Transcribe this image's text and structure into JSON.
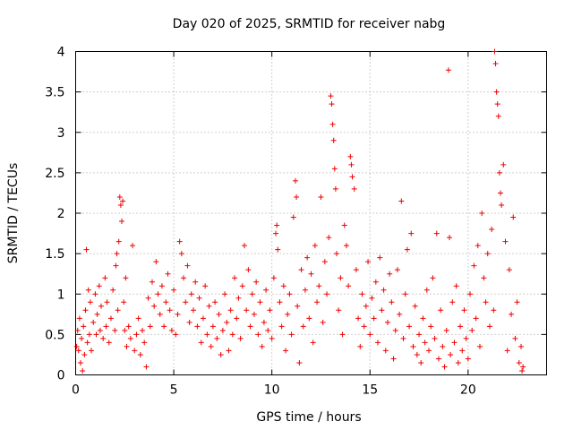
{
  "chart_data": {
    "type": "scatter",
    "title": "Day 020 of 2025, SRMTID for receiver nabg",
    "xlabel": "GPS time / hours",
    "ylabel": "SRMTID / TECUs",
    "xlim": [
      0,
      24
    ],
    "ylim": [
      0,
      4
    ],
    "xticks": [
      "0",
      "5",
      "10",
      "15",
      "20"
    ],
    "yticks": [
      "0",
      "0.5",
      "1",
      "1.5",
      "2",
      "2.5",
      "3",
      "3.5",
      "4"
    ],
    "grid": true,
    "marker": "+",
    "color": "#ee0000",
    "series": [
      {
        "name": "SRMTID",
        "note": "dense scatter; representative sample of points read from the figure",
        "points": [
          [
            0.05,
            0.35
          ],
          [
            0.1,
            0.55
          ],
          [
            0.15,
            0.3
          ],
          [
            0.2,
            0.7
          ],
          [
            0.25,
            0.15
          ],
          [
            0.3,
            0.45
          ],
          [
            0.35,
            0.05
          ],
          [
            0.4,
            0.6
          ],
          [
            0.45,
            0.25
          ],
          [
            0.5,
            0.8
          ],
          [
            0.55,
            1.55
          ],
          [
            0.6,
            0.4
          ],
          [
            0.65,
            1.05
          ],
          [
            0.7,
            0.5
          ],
          [
            0.75,
            0.9
          ],
          [
            0.8,
            0.3
          ],
          [
            0.9,
            0.65
          ],
          [
            1.0,
            1.0
          ],
          [
            1.05,
            0.5
          ],
          [
            1.1,
            0.75
          ],
          [
            1.2,
            1.1
          ],
          [
            1.25,
            0.55
          ],
          [
            1.3,
            0.85
          ],
          [
            1.4,
            0.45
          ],
          [
            1.5,
            1.2
          ],
          [
            1.55,
            0.6
          ],
          [
            1.6,
            0.9
          ],
          [
            1.7,
            0.4
          ],
          [
            1.8,
            0.7
          ],
          [
            1.9,
            1.05
          ],
          [
            2.0,
            0.55
          ],
          [
            2.05,
            1.35
          ],
          [
            2.1,
            1.5
          ],
          [
            2.15,
            0.8
          ],
          [
            2.2,
            1.65
          ],
          [
            2.25,
            2.2
          ],
          [
            2.3,
            2.1
          ],
          [
            2.35,
            1.9
          ],
          [
            2.4,
            2.15
          ],
          [
            2.45,
            0.9
          ],
          [
            2.5,
            0.55
          ],
          [
            2.55,
            1.2
          ],
          [
            2.6,
            0.35
          ],
          [
            2.7,
            0.6
          ],
          [
            2.8,
            0.45
          ],
          [
            2.9,
            1.6
          ],
          [
            3.0,
            0.3
          ],
          [
            3.1,
            0.5
          ],
          [
            3.2,
            0.7
          ],
          [
            3.3,
            0.25
          ],
          [
            3.4,
            0.55
          ],
          [
            3.5,
            0.4
          ],
          [
            3.6,
            0.1
          ],
          [
            3.7,
            0.95
          ],
          [
            3.8,
            0.6
          ],
          [
            3.9,
            1.15
          ],
          [
            4.0,
            0.85
          ],
          [
            4.1,
            1.4
          ],
          [
            4.2,
            1.0
          ],
          [
            4.3,
            0.75
          ],
          [
            4.4,
            1.1
          ],
          [
            4.5,
            0.6
          ],
          [
            4.6,
            0.9
          ],
          [
            4.7,
            1.25
          ],
          [
            4.8,
            0.8
          ],
          [
            4.9,
            0.55
          ],
          [
            5.0,
            1.05
          ],
          [
            5.1,
            0.5
          ],
          [
            5.2,
            0.75
          ],
          [
            5.3,
            1.65
          ],
          [
            5.4,
            1.5
          ],
          [
            5.5,
            1.2
          ],
          [
            5.6,
            0.9
          ],
          [
            5.7,
            1.35
          ],
          [
            5.8,
            0.65
          ],
          [
            5.9,
            1.0
          ],
          [
            6.0,
            0.8
          ],
          [
            6.1,
            1.15
          ],
          [
            6.2,
            0.6
          ],
          [
            6.3,
            0.95
          ],
          [
            6.4,
            0.4
          ],
          [
            6.5,
            0.7
          ],
          [
            6.6,
            1.1
          ],
          [
            6.7,
            0.5
          ],
          [
            6.8,
            0.85
          ],
          [
            6.9,
            0.35
          ],
          [
            7.0,
            0.6
          ],
          [
            7.1,
            0.9
          ],
          [
            7.2,
            0.45
          ],
          [
            7.3,
            0.75
          ],
          [
            7.4,
            0.25
          ],
          [
            7.5,
            0.55
          ],
          [
            7.6,
            1.0
          ],
          [
            7.7,
            0.65
          ],
          [
            7.8,
            0.3
          ],
          [
            7.9,
            0.8
          ],
          [
            8.0,
            0.5
          ],
          [
            8.1,
            1.2
          ],
          [
            8.2,
            0.7
          ],
          [
            8.3,
            0.95
          ],
          [
            8.4,
            0.45
          ],
          [
            8.5,
            1.1
          ],
          [
            8.6,
            1.6
          ],
          [
            8.7,
            0.8
          ],
          [
            8.8,
            1.3
          ],
          [
            8.9,
            0.6
          ],
          [
            9.0,
            1.0
          ],
          [
            9.1,
            0.75
          ],
          [
            9.2,
            1.15
          ],
          [
            9.3,
            0.5
          ],
          [
            9.4,
            0.9
          ],
          [
            9.5,
            0.35
          ],
          [
            9.6,
            0.65
          ],
          [
            9.7,
            1.05
          ],
          [
            9.8,
            0.55
          ],
          [
            9.9,
            0.8
          ],
          [
            10.0,
            0.45
          ],
          [
            10.1,
            1.2
          ],
          [
            10.2,
            1.75
          ],
          [
            10.25,
            1.85
          ],
          [
            10.3,
            1.55
          ],
          [
            10.4,
            0.9
          ],
          [
            10.5,
            0.6
          ],
          [
            10.6,
            1.1
          ],
          [
            10.7,
            0.3
          ],
          [
            10.8,
            0.75
          ],
          [
            10.9,
            1.0
          ],
          [
            11.0,
            0.5
          ],
          [
            11.1,
            1.95
          ],
          [
            11.2,
            2.4
          ],
          [
            11.25,
            2.2
          ],
          [
            11.3,
            0.85
          ],
          [
            11.4,
            0.15
          ],
          [
            11.5,
            1.3
          ],
          [
            11.6,
            0.6
          ],
          [
            11.7,
            1.05
          ],
          [
            11.8,
            1.45
          ],
          [
            11.9,
            0.7
          ],
          [
            12.0,
            1.25
          ],
          [
            12.1,
            0.4
          ],
          [
            12.2,
            1.6
          ],
          [
            12.3,
            0.9
          ],
          [
            12.4,
            1.1
          ],
          [
            12.5,
            2.2
          ],
          [
            12.6,
            0.65
          ],
          [
            12.7,
            1.4
          ],
          [
            12.8,
            1.0
          ],
          [
            12.9,
            1.7
          ],
          [
            13.0,
            3.45
          ],
          [
            13.05,
            3.35
          ],
          [
            13.1,
            3.1
          ],
          [
            13.15,
            2.9
          ],
          [
            13.2,
            2.55
          ],
          [
            13.25,
            2.3
          ],
          [
            13.3,
            1.5
          ],
          [
            13.4,
            0.8
          ],
          [
            13.5,
            1.2
          ],
          [
            13.6,
            0.5
          ],
          [
            13.7,
            1.85
          ],
          [
            13.8,
            1.6
          ],
          [
            13.9,
            1.1
          ],
          [
            14.0,
            2.7
          ],
          [
            14.05,
            2.6
          ],
          [
            14.1,
            2.45
          ],
          [
            14.2,
            2.3
          ],
          [
            14.3,
            1.3
          ],
          [
            14.4,
            0.7
          ],
          [
            14.5,
            0.35
          ],
          [
            14.6,
            1.0
          ],
          [
            14.7,
            0.6
          ],
          [
            14.8,
            0.85
          ],
          [
            14.9,
            1.4
          ],
          [
            15.0,
            0.5
          ],
          [
            15.1,
            0.95
          ],
          [
            15.2,
            0.7
          ],
          [
            15.3,
            1.15
          ],
          [
            15.4,
            0.4
          ],
          [
            15.5,
            1.45
          ],
          [
            15.6,
            0.8
          ],
          [
            15.7,
            1.05
          ],
          [
            15.8,
            0.3
          ],
          [
            15.9,
            0.65
          ],
          [
            16.0,
            1.25
          ],
          [
            16.1,
            0.9
          ],
          [
            16.2,
            0.2
          ],
          [
            16.3,
            0.55
          ],
          [
            16.4,
            1.3
          ],
          [
            16.5,
            0.75
          ],
          [
            16.6,
            2.15
          ],
          [
            16.7,
            0.45
          ],
          [
            16.8,
            1.0
          ],
          [
            16.9,
            1.55
          ],
          [
            17.0,
            0.6
          ],
          [
            17.1,
            1.75
          ],
          [
            17.2,
            0.35
          ],
          [
            17.3,
            0.85
          ],
          [
            17.4,
            0.25
          ],
          [
            17.5,
            0.5
          ],
          [
            17.6,
            0.15
          ],
          [
            17.7,
            0.7
          ],
          [
            17.8,
            0.4
          ],
          [
            17.9,
            1.05
          ],
          [
            18.0,
            0.3
          ],
          [
            18.1,
            0.6
          ],
          [
            18.2,
            1.2
          ],
          [
            18.3,
            0.45
          ],
          [
            18.4,
            1.75
          ],
          [
            18.5,
            0.2
          ],
          [
            18.6,
            0.8
          ],
          [
            18.7,
            0.35
          ],
          [
            18.8,
            0.1
          ],
          [
            18.9,
            0.55
          ],
          [
            19.0,
            3.77
          ],
          [
            19.05,
            1.7
          ],
          [
            19.1,
            0.25
          ],
          [
            19.2,
            0.9
          ],
          [
            19.3,
            0.4
          ],
          [
            19.4,
            1.1
          ],
          [
            19.5,
            0.15
          ],
          [
            19.6,
            0.6
          ],
          [
            19.7,
            0.3
          ],
          [
            19.8,
            0.8
          ],
          [
            19.9,
            0.45
          ],
          [
            20.0,
            0.2
          ],
          [
            20.1,
            1.0
          ],
          [
            20.2,
            0.55
          ],
          [
            20.3,
            1.35
          ],
          [
            20.4,
            0.7
          ],
          [
            20.5,
            1.6
          ],
          [
            20.6,
            0.35
          ],
          [
            20.7,
            2.0
          ],
          [
            20.8,
            1.2
          ],
          [
            20.9,
            0.9
          ],
          [
            21.0,
            1.5
          ],
          [
            21.1,
            0.6
          ],
          [
            21.2,
            1.8
          ],
          [
            21.3,
            0.8
          ],
          [
            21.35,
            4.0
          ],
          [
            21.4,
            3.85
          ],
          [
            21.45,
            3.5
          ],
          [
            21.5,
            3.35
          ],
          [
            21.55,
            3.2
          ],
          [
            21.6,
            2.5
          ],
          [
            21.65,
            2.25
          ],
          [
            21.7,
            2.1
          ],
          [
            21.8,
            2.6
          ],
          [
            21.9,
            1.65
          ],
          [
            22.0,
            0.3
          ],
          [
            22.1,
            1.3
          ],
          [
            22.2,
            0.75
          ],
          [
            22.3,
            1.95
          ],
          [
            22.4,
            0.45
          ],
          [
            22.5,
            0.9
          ],
          [
            22.6,
            0.15
          ],
          [
            22.7,
            0.35
          ],
          [
            22.75,
            0.05
          ],
          [
            22.8,
            0.1
          ]
        ]
      }
    ]
  }
}
